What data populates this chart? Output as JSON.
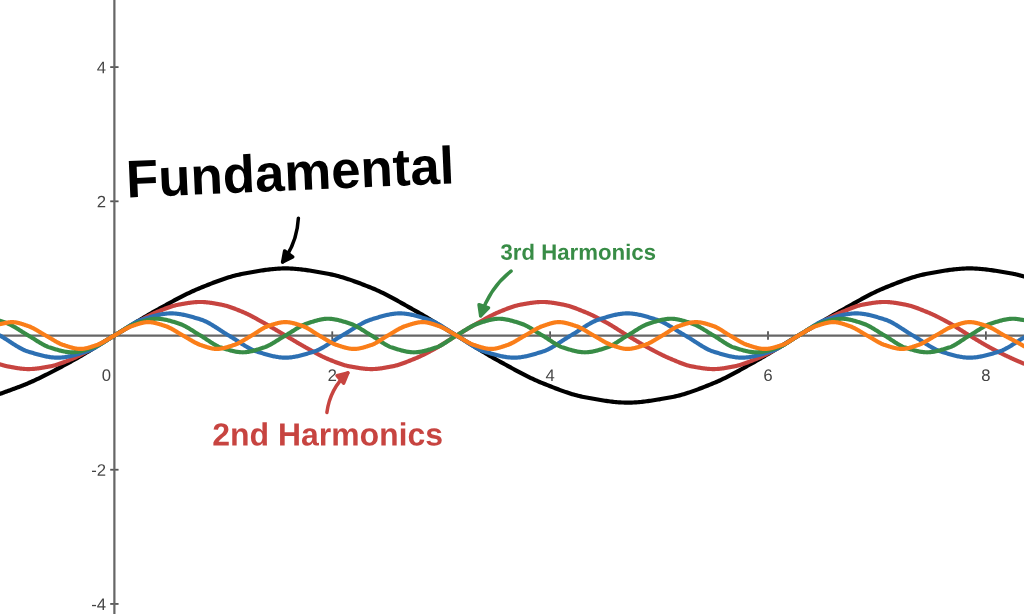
{
  "chart_data": {
    "type": "line",
    "line_style": "solid",
    "xlim": [
      -1.05,
      8.35
    ],
    "ylim": [
      -4.15,
      5.0
    ],
    "xticks": [
      0,
      2,
      4,
      6,
      8
    ],
    "yticks": [
      -4,
      -2,
      2,
      4
    ],
    "series": [
      {
        "color": "#000000",
        "x": [
          -1.05,
          -0.79,
          -0.39,
          0,
          0.39,
          0.79,
          1.18,
          1.57,
          1.96,
          2.36,
          2.75,
          3.14,
          3.53,
          3.93,
          4.32,
          4.71,
          5.11,
          5.5,
          5.89,
          6.28,
          6.68,
          7.07,
          7.46,
          7.85,
          8.25,
          8.35
        ],
        "values": [
          -0.87,
          -0.71,
          -0.38,
          0,
          0.38,
          0.71,
          0.92,
          1,
          0.92,
          0.71,
          0.38,
          0,
          -0.38,
          -0.71,
          -0.92,
          -1,
          -0.92,
          -0.71,
          -0.38,
          0,
          0.38,
          0.71,
          0.92,
          1,
          0.92,
          0.88
        ]
      },
      {
        "color": "#c74440",
        "x": [
          -1.05,
          -0.98,
          -0.79,
          -0.59,
          -0.39,
          -0.2,
          0,
          0.2,
          0.39,
          0.59,
          0.79,
          0.98,
          1.18,
          1.37,
          1.57,
          1.77,
          1.96,
          2.16,
          2.36,
          2.55,
          2.75,
          2.95,
          3.14,
          3.34,
          3.53,
          3.73,
          3.93,
          4.12,
          4.32,
          4.52,
          4.71,
          4.91,
          5.11,
          5.3,
          5.5,
          5.69,
          5.89,
          6.09,
          6.28,
          6.48,
          6.68,
          6.87,
          7.07,
          7.26,
          7.46,
          7.66,
          7.85,
          8.05,
          8.25,
          8.35
        ],
        "values": [
          -0.43,
          -0.46,
          -0.5,
          -0.46,
          -0.35,
          -0.19,
          0,
          0.19,
          0.35,
          0.46,
          0.5,
          0.46,
          0.35,
          0.19,
          0,
          -0.19,
          -0.35,
          -0.46,
          -0.5,
          -0.46,
          -0.35,
          -0.19,
          0,
          0.19,
          0.35,
          0.46,
          0.5,
          0.46,
          0.35,
          0.19,
          0,
          -0.19,
          -0.35,
          -0.46,
          -0.5,
          -0.46,
          -0.35,
          -0.19,
          0,
          0.19,
          0.35,
          0.46,
          0.5,
          0.46,
          0.35,
          0.19,
          0,
          -0.19,
          -0.35,
          -0.42
        ]
      },
      {
        "color": "#2d70b3",
        "x": [
          -1.05,
          -0.79,
          -0.52,
          -0.26,
          0,
          0.26,
          0.52,
          0.79,
          1.05,
          1.31,
          1.57,
          1.83,
          2.09,
          2.36,
          2.62,
          2.88,
          3.14,
          3.4,
          3.67,
          3.93,
          4.19,
          4.45,
          4.71,
          4.97,
          5.24,
          5.5,
          5.76,
          6.02,
          6.28,
          6.54,
          6.81,
          7.07,
          7.33,
          7.59,
          7.85,
          8.12,
          8.35
        ],
        "values": [
          0,
          -0.24,
          -0.33,
          -0.24,
          0,
          0.24,
          0.33,
          0.24,
          0,
          -0.24,
          -0.33,
          -0.24,
          0,
          0.24,
          0.33,
          0.24,
          0,
          -0.24,
          -0.33,
          -0.24,
          0,
          0.24,
          0.33,
          0.24,
          0,
          -0.24,
          -0.33,
          -0.24,
          0,
          0.24,
          0.33,
          0.24,
          0,
          -0.24,
          -0.33,
          -0.24,
          -0.03
        ]
      },
      {
        "color": "#388c46",
        "x": [
          -1.05,
          -0.98,
          -0.79,
          -0.59,
          -0.39,
          -0.2,
          0,
          0.2,
          0.39,
          0.59,
          0.79,
          0.98,
          1.18,
          1.37,
          1.57,
          1.77,
          1.96,
          2.16,
          2.36,
          2.55,
          2.75,
          2.95,
          3.14,
          3.34,
          3.53,
          3.73,
          3.93,
          4.12,
          4.32,
          4.52,
          4.71,
          4.91,
          5.11,
          5.3,
          5.5,
          5.69,
          5.89,
          6.09,
          6.28,
          6.48,
          6.68,
          6.87,
          7.07,
          7.26,
          7.46,
          7.66,
          7.85,
          8.05,
          8.25,
          8.35
        ],
        "values": [
          0.22,
          0.18,
          0,
          -0.18,
          -0.25,
          -0.18,
          0,
          0.18,
          0.25,
          0.18,
          0,
          -0.18,
          -0.25,
          -0.18,
          0,
          0.18,
          0.25,
          0.18,
          0,
          -0.18,
          -0.25,
          -0.18,
          0,
          0.18,
          0.25,
          0.18,
          0,
          -0.18,
          -0.25,
          -0.18,
          0,
          0.18,
          0.25,
          0.18,
          0,
          -0.18,
          -0.25,
          -0.18,
          0,
          0.18,
          0.25,
          0.18,
          0,
          -0.18,
          -0.25,
          -0.18,
          0,
          0.18,
          0.25,
          0.23
        ]
      },
      {
        "color": "#fa7e19",
        "x": [
          -1.05,
          -0.94,
          -0.79,
          -0.63,
          -0.47,
          -0.31,
          -0.16,
          0,
          0.16,
          0.31,
          0.47,
          0.63,
          0.79,
          0.94,
          1.1,
          1.26,
          1.41,
          1.57,
          1.73,
          1.88,
          2.04,
          2.2,
          2.36,
          2.51,
          2.67,
          2.83,
          2.98,
          3.14,
          3.3,
          3.46,
          3.61,
          3.77,
          3.93,
          4.08,
          4.24,
          4.4,
          4.56,
          4.71,
          4.87,
          5.03,
          5.18,
          5.34,
          5.5,
          5.65,
          5.81,
          5.97,
          6.13,
          6.28,
          6.44,
          6.6,
          6.75,
          6.91,
          7.07,
          7.23,
          7.38,
          7.54,
          7.7,
          7.85,
          8.01,
          8.17,
          8.33,
          8.35
        ],
        "values": [
          0.17,
          0.2,
          0.14,
          0,
          -0.14,
          -0.2,
          -0.14,
          0,
          0.14,
          0.2,
          0.14,
          0,
          -0.14,
          -0.2,
          -0.14,
          0,
          0.14,
          0.2,
          0.14,
          0,
          -0.14,
          -0.2,
          -0.14,
          0,
          0.14,
          0.2,
          0.14,
          0,
          -0.14,
          -0.2,
          -0.14,
          0,
          0.14,
          0.2,
          0.14,
          0,
          -0.14,
          -0.2,
          -0.14,
          0,
          0.14,
          0.2,
          0.14,
          0,
          -0.14,
          -0.2,
          -0.14,
          0,
          0.14,
          0.2,
          0.14,
          0,
          -0.14,
          -0.2,
          -0.14,
          0,
          0.14,
          0.2,
          0.14,
          0,
          -0.14,
          -0.16
        ]
      }
    ],
    "annotations": [
      {
        "text": "Fundamental",
        "x": 1.5,
        "y": 1
      },
      {
        "text": "3rd Harmonics",
        "x": 3.34,
        "y": 0.18
      },
      {
        "text": "2nd Harmonics",
        "x": 2.2,
        "y": -0.48
      }
    ]
  }
}
